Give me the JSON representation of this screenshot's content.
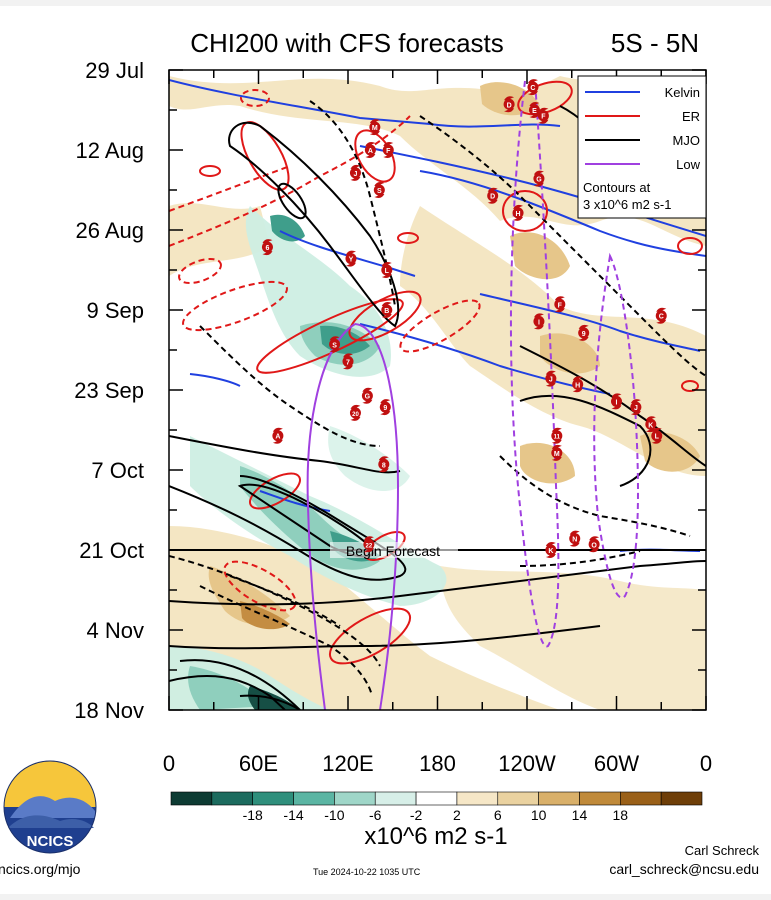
{
  "chart_data": {
    "type": "heatmap",
    "title": "CHI200 with CFS forecasts",
    "region": "5S - 5N",
    "x_tick_labels": [
      "0",
      "60E",
      "120E",
      "180",
      "120W",
      "60W",
      "0"
    ],
    "x_ticks_deg": [
      0,
      60,
      120,
      180,
      240,
      300,
      360
    ],
    "y_tick_labels": [
      "29 Jul",
      "12 Aug",
      "26 Aug",
      "9 Sep",
      "23 Sep",
      "7 Oct",
      "21 Oct",
      "4 Nov",
      "18 Nov"
    ],
    "y_range_days": [
      "2024-07-29",
      "2024-11-18"
    ],
    "forecast_line": {
      "label": "Begin Forecast",
      "date": "2024-10-21"
    },
    "legend": {
      "position": "top-right",
      "entries": [
        {
          "name": "Kelvin",
          "color": "#2040e0"
        },
        {
          "name": "ER",
          "color": "#e01818"
        },
        {
          "name": "MJO",
          "color": "#000000"
        },
        {
          "name": "Low",
          "color": "#a040e0"
        }
      ],
      "note_line1": "Contours at",
      "note_line2": "3 x10^6 m2 s-1"
    },
    "colorbar": {
      "labels": [
        "-18",
        "-14",
        "-10",
        "-6",
        "-2",
        "2",
        "6",
        "10",
        "14",
        "18"
      ],
      "colors": [
        "#0d3b33",
        "#1c6b5e",
        "#2f8f7c",
        "#5bb5a3",
        "#9fd6c8",
        "#d7efe8",
        "#ffffff",
        "#f6e7c7",
        "#ead2a0",
        "#d9b06a",
        "#c08a3a",
        "#9a6018",
        "#6e3e08"
      ],
      "units": "x10^6 m2 s-1"
    },
    "storms": [
      {
        "label": "C",
        "lon": 244,
        "date": "2024-08-01"
      },
      {
        "label": "D",
        "lon": 228,
        "date": "2024-08-04"
      },
      {
        "label": "E",
        "lon": 245,
        "date": "2024-08-05"
      },
      {
        "label": "F",
        "lon": 251,
        "date": "2024-08-06"
      },
      {
        "label": "M",
        "lon": 138,
        "date": "2024-08-08"
      },
      {
        "label": "A",
        "lon": 135,
        "date": "2024-08-12"
      },
      {
        "label": "F",
        "lon": 147,
        "date": "2024-08-12"
      },
      {
        "label": "J",
        "lon": 125,
        "date": "2024-08-16"
      },
      {
        "label": "G",
        "lon": 248,
        "date": "2024-08-17"
      },
      {
        "label": "S",
        "lon": 141,
        "date": "2024-08-19"
      },
      {
        "label": "D",
        "lon": 217,
        "date": "2024-08-20"
      },
      {
        "label": "H",
        "lon": 234,
        "date": "2024-08-23"
      },
      {
        "label": "6",
        "lon": 66,
        "date": "2024-08-29"
      },
      {
        "label": "Y",
        "lon": 122,
        "date": "2024-08-31"
      },
      {
        "label": "L",
        "lon": 146,
        "date": "2024-09-02"
      },
      {
        "label": "F",
        "lon": 262,
        "date": "2024-09-08"
      },
      {
        "label": "B",
        "lon": 146,
        "date": "2024-09-09"
      },
      {
        "label": "C",
        "lon": 330,
        "date": "2024-09-10"
      },
      {
        "label": "I",
        "lon": 248,
        "date": "2024-09-11"
      },
      {
        "label": "S",
        "lon": 111,
        "date": "2024-09-15"
      },
      {
        "label": "9",
        "lon": 278,
        "date": "2024-09-13"
      },
      {
        "label": "7",
        "lon": 120,
        "date": "2024-09-18"
      },
      {
        "label": "J",
        "lon": 256,
        "date": "2024-09-21"
      },
      {
        "label": "H",
        "lon": 274,
        "date": "2024-09-22"
      },
      {
        "label": "G",
        "lon": 133,
        "date": "2024-09-24"
      },
      {
        "label": "9",
        "lon": 145,
        "date": "2024-09-26"
      },
      {
        "label": "20",
        "lon": 125,
        "date": "2024-09-27"
      },
      {
        "label": "I",
        "lon": 300,
        "date": "2024-09-25"
      },
      {
        "label": "J",
        "lon": 313,
        "date": "2024-09-26"
      },
      {
        "label": "K",
        "lon": 323,
        "date": "2024-09-29"
      },
      {
        "label": "L",
        "lon": 327,
        "date": "2024-10-01"
      },
      {
        "label": "A",
        "lon": 73,
        "date": "2024-10-01"
      },
      {
        "label": "11",
        "lon": 260,
        "date": "2024-10-01"
      },
      {
        "label": "M",
        "lon": 260,
        "date": "2024-10-04"
      },
      {
        "label": "8",
        "lon": 144,
        "date": "2024-10-06"
      },
      {
        "label": "N",
        "lon": 272,
        "date": "2024-10-19"
      },
      {
        "label": "O",
        "lon": 285,
        "date": "2024-10-20"
      },
      {
        "label": "22",
        "lon": 134,
        "date": "2024-10-20"
      },
      {
        "label": "K",
        "lon": 256,
        "date": "2024-10-21"
      }
    ]
  },
  "footer": {
    "logo_text": "NCICS",
    "url": "ncics.org/mjo",
    "timestamp": "Tue 2024-10-22 1035 UTC",
    "author": "Carl Schreck",
    "email": "carl_schreck@ncsu.edu"
  }
}
